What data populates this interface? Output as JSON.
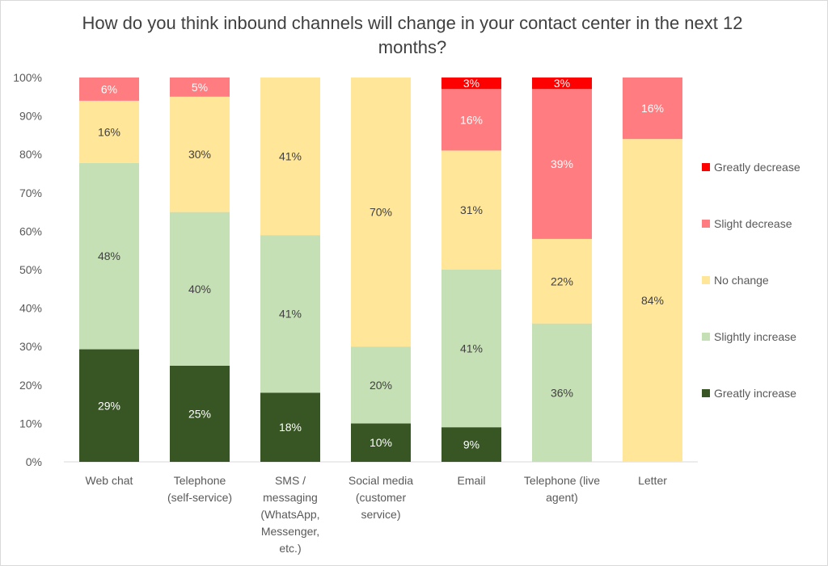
{
  "chart_data": {
    "type": "bar",
    "stacked": true,
    "title": "How do you think inbound channels will change in your contact center in the next 12 months?",
    "categories": [
      "Web chat",
      "Telephone (self-service)",
      "SMS / messaging (WhatsApp, Messenger, etc.)",
      "Social media (customer service)",
      "Email",
      "Telephone (live agent)",
      "Letter"
    ],
    "category_lines": [
      [
        "Web chat"
      ],
      [
        "Telephone",
        "(self-service)"
      ],
      [
        "SMS /",
        "messaging",
        "(WhatsApp,",
        "Messenger,",
        "etc.)"
      ],
      [
        "Social media",
        "(customer",
        "service)"
      ],
      [
        "Email"
      ],
      [
        "Telephone (live",
        "agent)"
      ],
      [
        "Letter"
      ]
    ],
    "series": [
      {
        "name": "Greatly increase",
        "color": "#375623",
        "label_color": "#ffffff",
        "values": [
          29,
          25,
          18,
          10,
          9,
          0,
          0
        ]
      },
      {
        "name": "Slightly increase",
        "color": "#C5E0B4",
        "label_color": "#404040",
        "values": [
          48,
          40,
          41,
          20,
          41,
          36,
          0
        ]
      },
      {
        "name": "No change",
        "color": "#FFE699",
        "label_color": "#404040",
        "values": [
          16,
          30,
          41,
          70,
          31,
          22,
          84
        ]
      },
      {
        "name": "Slight decrease",
        "color": "#FF7C80",
        "label_color": "#ffffff",
        "values": [
          6,
          5,
          0,
          0,
          16,
          39,
          16
        ]
      },
      {
        "name": "Greatly decrease",
        "color": "#FF0000",
        "label_color": "#ffffff",
        "values": [
          0,
          0,
          0,
          0,
          3,
          3,
          0
        ]
      }
    ],
    "ylim": [
      0,
      100
    ],
    "yticks": [
      "0%",
      "10%",
      "20%",
      "30%",
      "40%",
      "50%",
      "60%",
      "70%",
      "80%",
      "90%",
      "100%"
    ],
    "xlabel": "",
    "ylabel": "",
    "grid": false,
    "legend": "right"
  }
}
